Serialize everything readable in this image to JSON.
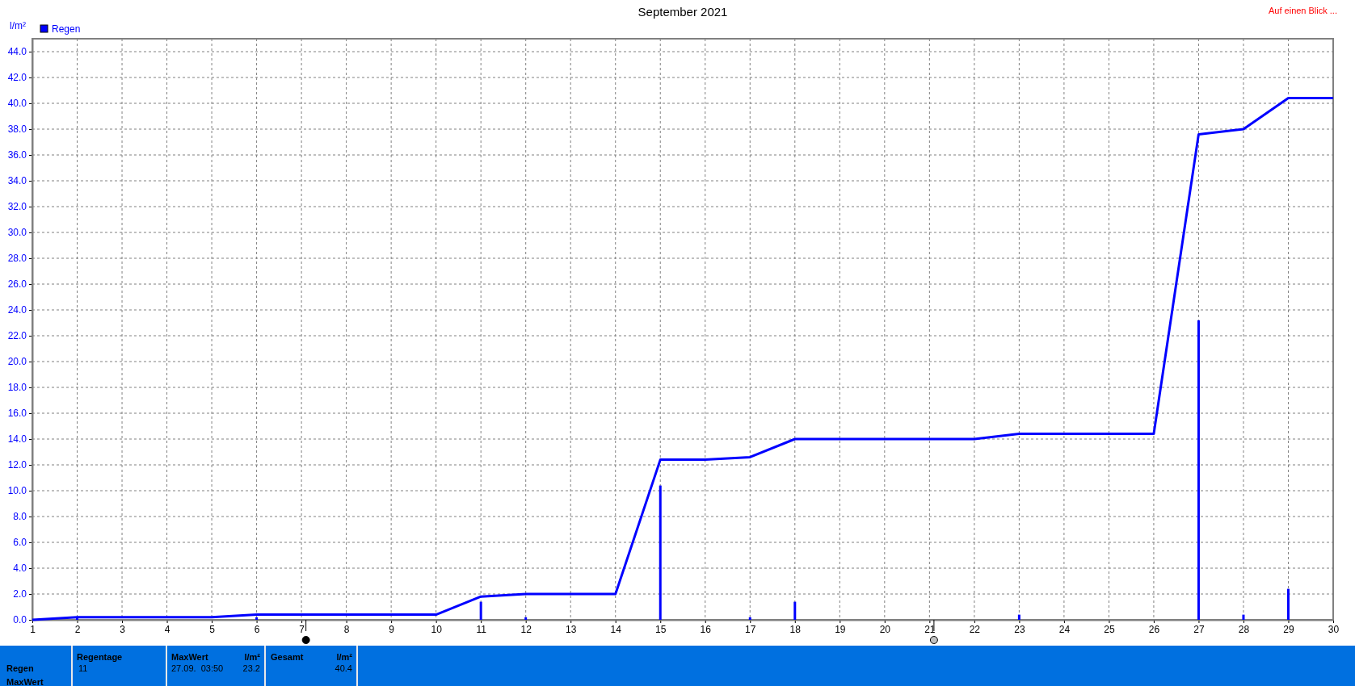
{
  "chart_data": {
    "type": "bar",
    "title": "September 2021",
    "ylabel": "l/m²",
    "series": [
      {
        "name": "Regen",
        "color": "#0000ff",
        "x": [
          2,
          6,
          11,
          12,
          15,
          17,
          18,
          23,
          27,
          28,
          29
        ],
        "values": [
          0.2,
          0.2,
          1.4,
          0.2,
          10.4,
          0.2,
          1.4,
          0.4,
          23.2,
          0.4,
          2.4
        ]
      },
      {
        "type": "line",
        "color": "#0000ff",
        "x": [
          1,
          2,
          5,
          6,
          10,
          11,
          12,
          14,
          15,
          16,
          17,
          18,
          22,
          23,
          26,
          27,
          28,
          29,
          30
        ],
        "values": [
          0,
          0.2,
          0.2,
          0.4,
          0.4,
          1.8,
          2.0,
          2.0,
          12.4,
          12.4,
          12.6,
          14.0,
          14.0,
          14.4,
          14.4,
          37.6,
          38.0,
          40.4,
          40.4
        ]
      }
    ],
    "xlim": [
      1,
      30
    ],
    "xticks": [
      1,
      2,
      3,
      4,
      5,
      6,
      7,
      8,
      9,
      10,
      11,
      12,
      13,
      14,
      15,
      16,
      17,
      18,
      19,
      20,
      21,
      22,
      23,
      24,
      25,
      26,
      27,
      28,
      29,
      30
    ],
    "ylim": [
      0,
      45
    ],
    "yticks": [
      {
        "value": 0,
        "label": "0.0"
      },
      {
        "value": 2,
        "label": "2.0"
      },
      {
        "value": 4,
        "label": "4.0"
      },
      {
        "value": 6,
        "label": "6.0"
      },
      {
        "value": 8,
        "label": "8.0"
      },
      {
        "value": 10,
        "label": "10.0"
      },
      {
        "value": 12,
        "label": "12.0"
      },
      {
        "value": 14,
        "label": "14.0"
      },
      {
        "value": 16,
        "label": "16.0"
      },
      {
        "value": 18,
        "label": "18.0"
      },
      {
        "value": 20,
        "label": "20.0"
      },
      {
        "value": 22,
        "label": "22.0"
      },
      {
        "value": 24,
        "label": "24.0"
      },
      {
        "value": 26,
        "label": "26.0"
      },
      {
        "value": 28,
        "label": "28.0"
      },
      {
        "value": 30,
        "label": "30.0"
      },
      {
        "value": 32,
        "label": "32.0"
      },
      {
        "value": 34,
        "label": "34.0"
      },
      {
        "value": 36,
        "label": "36.0"
      },
      {
        "value": 38,
        "label": "38.0"
      },
      {
        "value": 40,
        "label": "40.0"
      },
      {
        "value": 42,
        "label": "42.0"
      },
      {
        "value": 44,
        "label": "44.0"
      }
    ],
    "grid": true,
    "legend": "top left",
    "line_style": "solid",
    "marker": "none",
    "annotations": [
      "Auf einen Blick ...",
      "Regen",
      "MaxWert",
      "Regentage",
      "11",
      "MaxWert",
      "l/m²",
      "27.09.  03:50",
      "23.2",
      "Gesamt",
      "l/m²",
      "40.4"
    ]
  }
}
